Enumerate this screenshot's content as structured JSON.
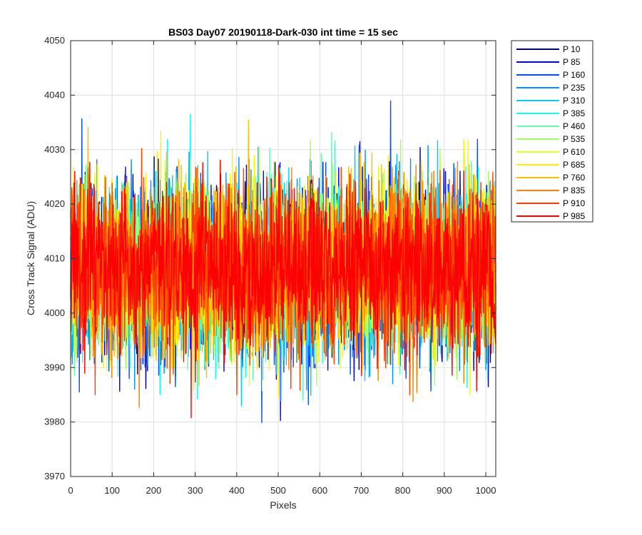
{
  "chart_data": {
    "type": "line",
    "title": "BS03 Day07 20190118-Dark-030 int time = 15 sec",
    "xlabel": "Pixels",
    "ylabel": "Cross Track Signal (ADU)",
    "xlim": [
      0,
      1024
    ],
    "ylim": [
      3970,
      4050
    ],
    "xticks": [
      "0",
      "100",
      "200",
      "300",
      "400",
      "500",
      "600",
      "700",
      "800",
      "900",
      "1000"
    ],
    "yticks": [
      "3970",
      "3980",
      "3990",
      "4000",
      "4010",
      "4020",
      "4030",
      "4040",
      "4050"
    ],
    "grid": true,
    "legend_position": "outside-top-right",
    "points_per_series": 1024,
    "series": [
      {
        "name": "P 10",
        "color": "#00008f",
        "mean": 4008,
        "min": 3982,
        "max": 4035
      },
      {
        "name": "P 85",
        "color": "#0000ff",
        "mean": 4008,
        "min": 3980,
        "max": 4044
      },
      {
        "name": "P 160",
        "color": "#0050ff",
        "mean": 4008,
        "min": 3971,
        "max": 4040
      },
      {
        "name": "P 235",
        "color": "#0090ff",
        "mean": 4008,
        "min": 3982,
        "max": 4038
      },
      {
        "name": "P 310",
        "color": "#00cfff",
        "mean": 4008,
        "min": 3983,
        "max": 4041
      },
      {
        "name": "P 385",
        "color": "#10ffef",
        "mean": 4008,
        "min": 3983,
        "max": 4039
      },
      {
        "name": "P 460",
        "color": "#60ffb0",
        "mean": 4008,
        "min": 3984,
        "max": 4042
      },
      {
        "name": "P 535",
        "color": "#a0ff60",
        "mean": 4008,
        "min": 3985,
        "max": 4044
      },
      {
        "name": "P 610",
        "color": "#dfff20",
        "mean": 4008,
        "min": 3985,
        "max": 4043
      },
      {
        "name": "P 685",
        "color": "#ffef00",
        "mean": 4008,
        "min": 3971,
        "max": 4040
      },
      {
        "name": "P 760",
        "color": "#ffbf00",
        "mean": 4008,
        "min": 3978,
        "max": 4041
      },
      {
        "name": "P 835",
        "color": "#ff8000",
        "mean": 4008,
        "min": 3979,
        "max": 4042
      },
      {
        "name": "P 910",
        "color": "#ff4000",
        "mean": 4008,
        "min": 3985,
        "max": 4036
      },
      {
        "name": "P 985",
        "color": "#ff0000",
        "mean": 4008,
        "min": 3975,
        "max": 4040
      }
    ]
  }
}
